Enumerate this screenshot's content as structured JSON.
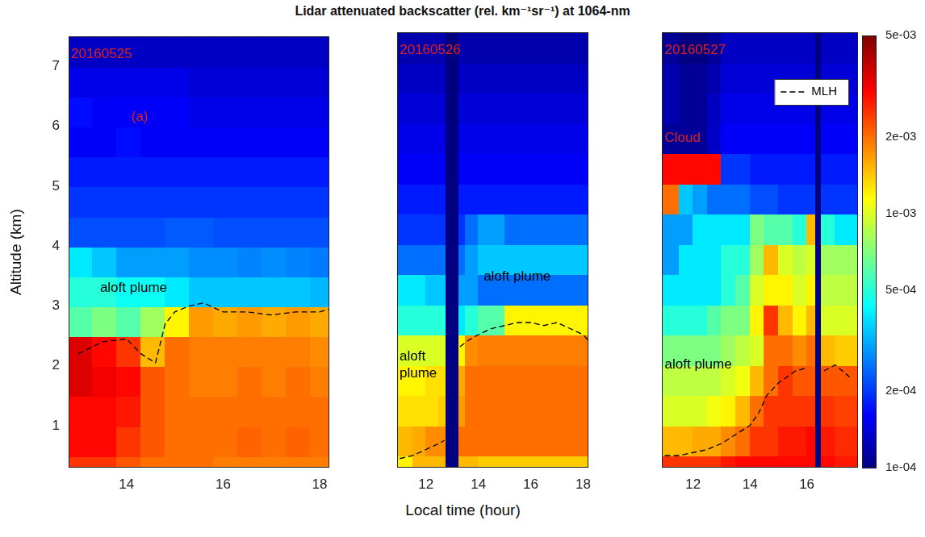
{
  "chart_data": {
    "type": "heatmap",
    "title": "Lidar attenuated backscatter (rel. km⁻¹sr⁻¹) at 1064-nm",
    "x_label": "Local time (hour)",
    "y_label": "Altitude (km)",
    "ylim": [
      0.3,
      7.5
    ],
    "yticks": [
      1,
      2,
      3,
      4,
      5,
      6,
      7
    ],
    "y_edges": [
      0.3,
      0.5,
      1.0,
      1.5,
      2.0,
      2.5,
      3.0,
      3.5,
      4.0,
      4.5,
      5.0,
      5.5,
      6.0,
      6.5,
      7.0,
      7.5
    ],
    "colorbar": {
      "log": true,
      "lim": [
        0.0001,
        0.005
      ],
      "ticks": [
        {
          "value": 0.0001,
          "label": "1e-04"
        },
        {
          "value": 0.0002,
          "label": "2e-04"
        },
        {
          "value": 0.0005,
          "label": "5e-04"
        },
        {
          "value": 0.001,
          "label": "1e-03"
        },
        {
          "value": 0.002,
          "label": "2e-03"
        },
        {
          "value": 0.005,
          "label": "5e-03"
        }
      ]
    },
    "panels": [
      {
        "xlim": [
          12.8,
          18.2
        ],
        "xticks": [
          14,
          16,
          18
        ],
        "x_edges": [
          12.8,
          13.3,
          13.8,
          14.3,
          14.8,
          15.3,
          15.8,
          16.3,
          16.8,
          17.3,
          17.8,
          18.2
        ],
        "cells": [
          [
            0.0025,
            0.003,
            0.003,
            0.0035,
            0.0035,
            0.0006,
            0.0005,
            0.0004,
            0.00022,
            0.0002,
            0.00018,
            0.00016,
            0.00017,
            0.00015,
            0.00013
          ],
          [
            0.0025,
            0.003,
            0.003,
            0.0032,
            0.003,
            0.0007,
            0.0005,
            0.00035,
            0.00022,
            0.0002,
            0.00018,
            0.00016,
            0.00016,
            0.00015,
            0.00013
          ],
          [
            0.0022,
            0.0025,
            0.0028,
            0.003,
            0.0025,
            0.0006,
            0.00045,
            0.0003,
            0.00022,
            0.0002,
            0.00018,
            0.00017,
            0.00016,
            0.00015,
            0.00013
          ],
          [
            0.002,
            0.0022,
            0.0022,
            0.0022,
            0.0015,
            0.0008,
            0.00045,
            0.0003,
            0.00022,
            0.0002,
            0.00018,
            0.00016,
            0.00016,
            0.00015,
            0.00013
          ],
          [
            0.002,
            0.002,
            0.002,
            0.002,
            0.002,
            0.0012,
            0.0004,
            0.0003,
            0.00023,
            0.0002,
            0.00018,
            0.00016,
            0.00016,
            0.00015,
            0.00013
          ],
          [
            0.002,
            0.002,
            0.002,
            0.0019,
            0.0019,
            0.0017,
            0.00035,
            0.00028,
            0.00023,
            0.0002,
            0.00018,
            0.00016,
            0.00015,
            0.00014,
            0.00013
          ],
          [
            0.0019,
            0.002,
            0.002,
            0.0019,
            0.0019,
            0.0016,
            0.00035,
            0.00028,
            0.00022,
            0.0002,
            0.00018,
            0.00016,
            0.00015,
            0.00014,
            0.00013
          ],
          [
            0.0019,
            0.0021,
            0.002,
            0.002,
            0.0019,
            0.0017,
            0.00035,
            0.00027,
            0.00022,
            0.0002,
            0.00018,
            0.00016,
            0.00015,
            0.00014,
            0.00013
          ],
          [
            0.0019,
            0.002,
            0.002,
            0.0019,
            0.0019,
            0.0016,
            0.00035,
            0.00028,
            0.00022,
            0.0002,
            0.00018,
            0.00016,
            0.00015,
            0.00014,
            0.00013
          ],
          [
            0.0019,
            0.0021,
            0.002,
            0.002,
            0.0019,
            0.0017,
            0.00035,
            0.00027,
            0.00022,
            0.0002,
            0.00018,
            0.00016,
            0.00015,
            0.00014,
            0.00013
          ],
          [
            0.0019,
            0.002,
            0.002,
            0.0019,
            0.0018,
            0.0016,
            0.00033,
            0.00026,
            0.00022,
            0.0002,
            0.00018,
            0.00016,
            0.00015,
            0.00014,
            0.00013
          ]
        ],
        "series": [
          {
            "name": "MLH",
            "color": "#000000",
            "line_style": "dashed",
            "x": [
              13.0,
              13.5,
              14.0,
              14.3,
              14.6,
              14.8,
              15.0,
              15.3,
              15.6,
              16.0,
              16.5,
              17.0,
              17.5,
              18.0,
              18.2
            ],
            "values": [
              2.2,
              2.4,
              2.45,
              2.2,
              2.05,
              2.7,
              2.9,
              3.0,
              3.05,
              2.9,
              2.9,
              2.85,
              2.9,
              2.9,
              2.95
            ]
          }
        ],
        "annotations": [
          {
            "text": "20160525",
            "x": 12.85,
            "y": 7.2,
            "color": "#e0201b"
          },
          {
            "text": "(a)",
            "x": 14.1,
            "y": 6.15,
            "color": "#e0201b"
          },
          {
            "text": "aloft plume",
            "x": 13.45,
            "y": 3.3,
            "color": "#000000"
          }
        ]
      },
      {
        "xlim": [
          10.9,
          18.2
        ],
        "xticks": [
          12,
          14,
          16,
          18
        ],
        "x_edges": [
          10.9,
          11.5,
          12.0,
          12.5,
          12.75,
          13.25,
          13.5,
          14.0,
          15.0,
          16.0,
          17.0,
          18.2
        ],
        "cells": [
          [
            0.0012,
            0.0015,
            0.0013,
            0.0012,
            0.001,
            0.0005,
            0.0004,
            0.00025,
            0.0002,
            0.00018,
            0.00016,
            0.00015,
            0.00014,
            0.00013,
            0.00012
          ],
          [
            0.0015,
            0.0016,
            0.0013,
            0.0012,
            0.001,
            0.0005,
            0.0004,
            0.00025,
            0.0002,
            0.00018,
            0.00016,
            0.00015,
            0.00014,
            0.00013,
            0.00012
          ],
          [
            0.0015,
            0.0018,
            0.0013,
            0.0013,
            0.001,
            0.0005,
            0.00035,
            0.00025,
            0.0002,
            0.00018,
            0.00016,
            0.00015,
            0.00014,
            0.00013,
            0.00012
          ],
          [
            0.0015,
            0.0018,
            0.0014,
            0.0013,
            0.001,
            0.0005,
            0.00035,
            0.00025,
            0.0002,
            0.00018,
            0.00016,
            0.00015,
            0.00014,
            0.00013,
            0.00012
          ],
          [
            0.0001,
            0.0001,
            0.0001,
            0.0001,
            0.0001,
            0.0001,
            0.0001,
            0.0001,
            0.0001,
            0.0001,
            0.0001,
            0.0001,
            0.0001,
            0.0001,
            0.0001
          ],
          [
            0.0015,
            0.002,
            0.0017,
            0.0016,
            0.0012,
            0.0004,
            0.0003,
            0.00025,
            0.0002,
            0.00018,
            0.00016,
            0.00015,
            0.00014,
            0.00013,
            0.00012
          ],
          [
            0.0015,
            0.002,
            0.002,
            0.002,
            0.0018,
            0.0005,
            0.0003,
            0.0003,
            0.00025,
            0.00018,
            0.00016,
            0.00015,
            0.00014,
            0.00013,
            0.00012
          ],
          [
            0.0014,
            0.002,
            0.002,
            0.002,
            0.0019,
            0.0006,
            0.00025,
            0.00035,
            0.0003,
            0.00018,
            0.00016,
            0.00015,
            0.00014,
            0.00013,
            0.00012
          ],
          [
            0.0014,
            0.002,
            0.002,
            0.002,
            0.0019,
            0.0012,
            0.00025,
            0.00035,
            0.00025,
            0.00018,
            0.00016,
            0.00015,
            0.00014,
            0.00013,
            0.00012
          ],
          [
            0.0014,
            0.002,
            0.002,
            0.002,
            0.0019,
            0.0012,
            0.00025,
            0.00035,
            0.00025,
            0.00018,
            0.00016,
            0.00015,
            0.00014,
            0.00013,
            0.00012
          ],
          [
            0.0014,
            0.002,
            0.002,
            0.002,
            0.0019,
            0.0012,
            0.00025,
            0.00035,
            0.00025,
            0.00018,
            0.00016,
            0.00015,
            0.00014,
            0.00013,
            0.00012
          ]
        ],
        "series": [
          {
            "name": "MLH",
            "color": "#000000",
            "line_style": "dashed",
            "x": [
              11.0,
              11.5,
              12.0,
              12.5,
              12.7,
              13.0,
              13.3,
              13.6,
              14.0,
              14.5,
              15.0,
              15.5,
              16.0,
              16.5,
              17.0,
              17.5,
              18.0,
              18.2
            ],
            "values": [
              0.45,
              0.5,
              0.6,
              0.7,
              0.75,
              null,
              2.3,
              2.4,
              2.5,
              2.6,
              2.65,
              2.7,
              2.7,
              2.65,
              2.7,
              2.6,
              2.5,
              2.4
            ]
          }
        ],
        "annotations": [
          {
            "text": "20160526",
            "x": 11.0,
            "y": 7.2,
            "color": "#e0201b"
          },
          {
            "text": "aloft plume",
            "x": 14.2,
            "y": 3.45,
            "color": "#000000"
          },
          {
            "text": [
              "aloft",
              "plume"
            ],
            "x": 10.95,
            "y": 2.0,
            "color": "#000000"
          }
        ]
      },
      {
        "xlim": [
          10.9,
          17.8
        ],
        "xticks": [
          12,
          14,
          16
        ],
        "x_edges": [
          10.9,
          11.5,
          12.0,
          12.5,
          13.0,
          13.5,
          14.0,
          14.5,
          15.0,
          15.5,
          16.0,
          16.3,
          16.5,
          17.0,
          17.8
        ],
        "cells": [
          [
            0.0025,
            0.0015,
            0.001,
            0.0009,
            0.0007,
            0.0005,
            0.0004,
            0.0003,
            0.0003,
            0.002,
            0.003,
            0.00011,
            0.00012,
            0.00012,
            0.00011
          ],
          [
            0.0025,
            0.0015,
            0.001,
            0.0009,
            0.0007,
            0.0005,
            0.0004,
            0.0004,
            0.0003,
            0.00035,
            0.003,
            0.00011,
            0.00011,
            0.00011,
            0.0001
          ],
          [
            0.0025,
            0.0016,
            0.001,
            0.0009,
            0.0007,
            0.0005,
            0.0004,
            0.0004,
            0.0004,
            0.0003,
            0.003,
            0.00011,
            0.00011,
            0.00011,
            0.0001
          ],
          [
            0.0025,
            0.0016,
            0.0011,
            0.0009,
            0.0007,
            0.0006,
            0.0004,
            0.0004,
            0.0004,
            0.00025,
            0.003,
            0.00013,
            0.00013,
            0.00012,
            0.00011
          ],
          [
            0.0028,
            0.0018,
            0.0012,
            0.001,
            0.0008,
            0.0007,
            0.0005,
            0.0005,
            0.0004,
            0.00025,
            0.0002,
            0.00016,
            0.00015,
            0.00014,
            0.00013
          ],
          [
            0.003,
            0.002,
            0.0015,
            0.0011,
            0.0009,
            0.0007,
            0.0006,
            0.0005,
            0.0004,
            0.00025,
            0.0002,
            0.00016,
            0.00015,
            0.00014,
            0.00013
          ],
          [
            0.003,
            0.0025,
            0.002,
            0.0015,
            0.001,
            0.0012,
            0.001,
            0.0008,
            0.0007,
            0.00022,
            0.00018,
            0.00016,
            0.00015,
            0.00014,
            0.00013
          ],
          [
            0.003,
            0.0025,
            0.0025,
            0.002,
            0.002,
            0.0025,
            0.0012,
            0.0015,
            0.0006,
            0.00022,
            0.00018,
            0.00016,
            0.00015,
            0.00014,
            0.00013
          ],
          [
            0.003,
            0.0028,
            0.0025,
            0.0025,
            0.002,
            0.0015,
            0.0012,
            0.001,
            0.0006,
            0.0002,
            0.00018,
            0.00016,
            0.00015,
            0.00014,
            0.00013
          ],
          [
            0.003,
            0.0028,
            0.0025,
            0.0022,
            0.0018,
            0.0012,
            0.001,
            0.0009,
            0.0005,
            0.0002,
            0.00018,
            0.00016,
            0.00015,
            0.00014,
            0.00013
          ],
          [
            0.003,
            0.003,
            0.0025,
            0.0022,
            0.002,
            0.0015,
            0.0012,
            0.001,
            0.0015,
            0.0002,
            0.00018,
            0.00016,
            0.00015,
            0.00014,
            0.00013
          ],
          [
            0.0001,
            0.0001,
            0.0001,
            0.0001,
            0.0001,
            0.0001,
            0.0001,
            0.0001,
            0.0001,
            0.0001,
            0.0001,
            0.0001,
            0.0001,
            0.0001,
            0.0001
          ],
          [
            0.003,
            0.0028,
            0.0025,
            0.0022,
            0.0015,
            0.001,
            0.0009,
            0.0008,
            0.0005,
            0.0002,
            0.00018,
            0.00016,
            0.00015,
            0.00014,
            0.00013
          ],
          [
            0.0028,
            0.0026,
            0.0024,
            0.0022,
            0.0014,
            0.001,
            0.0009,
            0.0008,
            0.0004,
            0.0002,
            0.00018,
            0.00016,
            0.00015,
            0.00014,
            0.00013
          ]
        ],
        "series": [
          {
            "name": "MLH",
            "color": "#000000",
            "line_style": "dashed",
            "x": [
              11.0,
              11.5,
              12.0,
              12.5,
              13.0,
              13.5,
              14.0,
              14.3,
              14.6,
              15.0,
              15.3,
              15.6,
              16.0,
              16.3,
              16.6,
              17.0,
              17.5
            ],
            "values": [
              0.5,
              0.5,
              0.55,
              0.6,
              0.7,
              0.85,
              1.0,
              1.2,
              1.5,
              1.7,
              1.8,
              1.9,
              1.95,
              null,
              1.9,
              2.0,
              1.8
            ]
          }
        ],
        "legend": "upper right",
        "annotations": [
          {
            "text": "20160527",
            "x": 11.0,
            "y": 7.2,
            "color": "#e0201b"
          },
          {
            "text": "Cloud",
            "x": 11.0,
            "y": 5.75,
            "color": "#e0201b"
          },
          {
            "text": "aloft plume",
            "x": 11.0,
            "y": 2.0,
            "color": "#000000"
          }
        ]
      }
    ]
  }
}
